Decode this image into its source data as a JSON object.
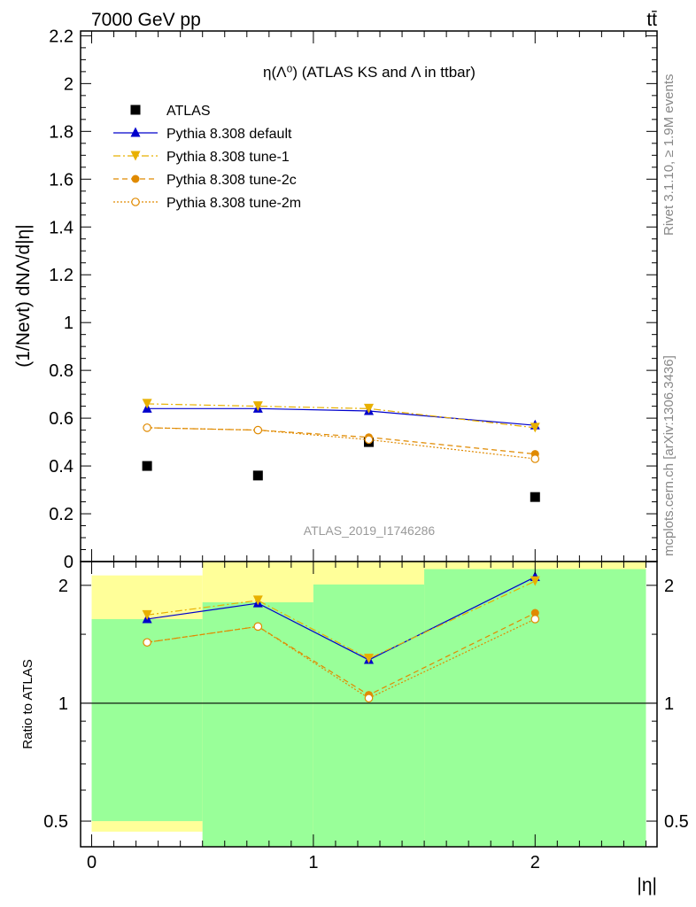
{
  "header": {
    "left": "7000 GeV pp",
    "right": "tt̄"
  },
  "side_text": {
    "rivet": "Rivet 3.1.10, ≥ 1.9M events",
    "mcplots": "mcplots.cern.ch [arXiv:1306.3436]"
  },
  "chart_data": [
    {
      "type": "scatter",
      "title": "η(Λ⁰) (ATLAS KS and Λ in ttbar)",
      "ylabel": "(1/Nevt) dNΛ/d|η|",
      "xlabel": "|η|",
      "watermark": "ATLAS_2019_I1746286",
      "xlim": [
        -0.05,
        2.55
      ],
      "ylim": [
        0,
        2.22
      ],
      "yticks": [
        "0",
        "0.2",
        "0.4",
        "0.6",
        "0.8",
        "1",
        "1.2",
        "1.4",
        "1.6",
        "1.8",
        "2",
        "2.2"
      ],
      "x": [
        0.25,
        0.75,
        1.25,
        2.0
      ],
      "legend_position": "top-left",
      "series": [
        {
          "name": "ATLAS",
          "values": [
            0.4,
            0.36,
            0.5,
            0.27
          ],
          "color": "#000000",
          "marker": "square",
          "line": "none"
        },
        {
          "name": "Pythia 8.308 default",
          "values": [
            0.64,
            0.64,
            0.63,
            0.57
          ],
          "color": "#0000cc",
          "marker": "triangle-up",
          "line": "solid"
        },
        {
          "name": "Pythia 8.308 tune-1",
          "values": [
            0.66,
            0.65,
            0.64,
            0.56
          ],
          "color": "#e8b000",
          "marker": "triangle-down",
          "line": "dashdot"
        },
        {
          "name": "Pythia 8.308 tune-2c",
          "values": [
            0.56,
            0.55,
            0.52,
            0.45
          ],
          "color": "#e08a00",
          "marker": "circle",
          "line": "dashed"
        },
        {
          "name": "Pythia 8.308 tune-2m",
          "values": [
            0.56,
            0.55,
            0.51,
            0.43
          ],
          "color": "#e08a00",
          "marker": "circle-open",
          "line": "dotted"
        }
      ]
    },
    {
      "type": "line",
      "ylabel": "Ratio to ATLAS",
      "xlabel": "|η|",
      "scale": "log",
      "ylim": [
        0.43,
        2.3
      ],
      "yticks": [
        "0.5",
        "1",
        "2"
      ],
      "xticks": [
        "0",
        "1",
        "2"
      ],
      "x": [
        0.25,
        0.75,
        1.25,
        2.0
      ],
      "bands": {
        "bin_edges": [
          0.0,
          0.5,
          1.0,
          1.5,
          2.5
        ],
        "yellow_low": [
          0.47,
          0.43,
          0.43,
          0.43
        ],
        "yellow_high": [
          2.12,
          2.3,
          2.3,
          2.3
        ],
        "green_low": [
          0.5,
          0.43,
          0.43,
          0.43
        ],
        "green_high": [
          1.64,
          1.81,
          2.01,
          2.2
        ]
      },
      "series": [
        {
          "name": "Pythia 8.308 default",
          "values": [
            1.64,
            1.8,
            1.29,
            2.1
          ],
          "color": "#0000cc",
          "marker": "triangle-up",
          "line": "solid"
        },
        {
          "name": "Pythia 8.308 tune-1",
          "values": [
            1.68,
            1.83,
            1.3,
            2.05
          ],
          "color": "#e8b000",
          "marker": "triangle-down",
          "line": "dashdot"
        },
        {
          "name": "Pythia 8.308 tune-2c",
          "values": [
            1.43,
            1.57,
            1.05,
            1.7
          ],
          "color": "#e08a00",
          "marker": "circle",
          "line": "dashed"
        },
        {
          "name": "Pythia 8.308 tune-2m",
          "values": [
            1.43,
            1.57,
            1.03,
            1.64
          ],
          "color": "#e08a00",
          "marker": "circle-open",
          "line": "dotted"
        }
      ]
    }
  ]
}
